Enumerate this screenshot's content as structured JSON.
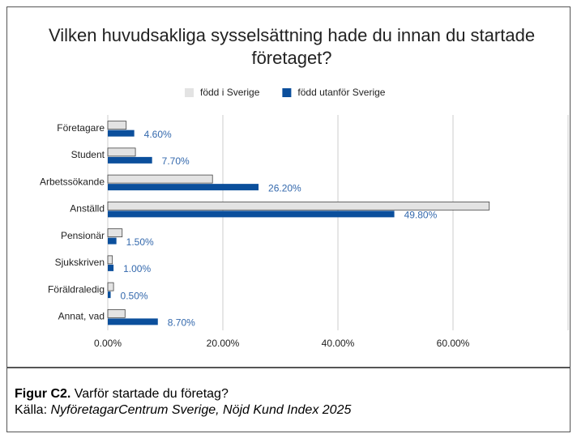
{
  "chart_data": {
    "type": "barh",
    "title": "Vilken huvudsakliga sysselsättning hade du innan du startade företaget?",
    "categories": [
      "Företagare",
      "Student",
      "Arbetssökande",
      "Anställd",
      "Pensionär",
      "Sjukskriven",
      "Föräldraledig",
      "Annat, vad"
    ],
    "series": [
      {
        "name": "född i Sverige",
        "color": "#e3e3e3",
        "values": [
          3.2,
          4.8,
          18.2,
          66.3,
          2.5,
          0.8,
          1.0,
          3.0
        ]
      },
      {
        "name": "född utanför Sverige",
        "color": "#0b4f9c",
        "values": [
          4.6,
          7.7,
          26.2,
          49.8,
          1.5,
          1.0,
          0.5,
          8.7
        ],
        "value_labels": [
          "4.60%",
          "7.70%",
          "26.20%",
          "49.80%",
          "1.50%",
          "1.00%",
          "0.50%",
          "8.70%"
        ]
      }
    ],
    "xlim": [
      0,
      80
    ],
    "xticks": [
      {
        "value": 0,
        "label": "0.00%"
      },
      {
        "value": 20,
        "label": "20.00%"
      },
      {
        "value": 40,
        "label": "40.00%"
      },
      {
        "value": 60,
        "label": "60.00%"
      }
    ],
    "grid": true,
    "legend": "top"
  },
  "caption": {
    "figure_label": "Figur C2.",
    "figure_text": "Varför startade du företag?",
    "source_label": "Källa:",
    "source_text": "NyföretagarCentrum Sverige, Nöjd Kund Index 2025"
  }
}
